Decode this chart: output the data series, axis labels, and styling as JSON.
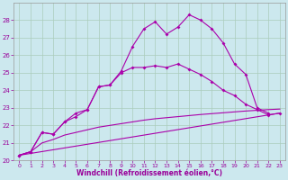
{
  "background_color": "#cce8ee",
  "grid_color": "#aaccbb",
  "line_color": "#aa00aa",
  "ylim": [
    20,
    29
  ],
  "yticks": [
    20,
    21,
    22,
    23,
    24,
    25,
    26,
    27,
    28
  ],
  "xticks": [
    0,
    1,
    2,
    3,
    4,
    5,
    6,
    7,
    8,
    9,
    10,
    11,
    12,
    13,
    14,
    15,
    16,
    17,
    18,
    19,
    20,
    21,
    22,
    23
  ],
  "xlabel": "Windchill (Refroidissement éolien,°C)",
  "line1_x": [
    0,
    1,
    2,
    3,
    4,
    5,
    6,
    7,
    8,
    9,
    10,
    11,
    12,
    13,
    14,
    15,
    16,
    17,
    18,
    19,
    20,
    21,
    22
  ],
  "line1_y": [
    20.3,
    20.5,
    21.6,
    21.5,
    22.2,
    22.7,
    22.9,
    24.2,
    24.3,
    25.1,
    26.5,
    27.5,
    27.9,
    27.2,
    27.6,
    28.3,
    28.0,
    27.5,
    26.7,
    25.5,
    24.9,
    23.0,
    22.7
  ],
  "line2_x": [
    0,
    1,
    2,
    3,
    4,
    5,
    6,
    7,
    8,
    9,
    10,
    11,
    12,
    13,
    14,
    15,
    16,
    17,
    18,
    19,
    20,
    21,
    22,
    23
  ],
  "line2_y": [
    20.3,
    20.5,
    21.6,
    21.5,
    22.2,
    22.5,
    22.9,
    24.2,
    24.3,
    25.0,
    25.3,
    25.3,
    25.4,
    25.3,
    25.5,
    25.2,
    24.9,
    24.5,
    24.0,
    23.7,
    23.2,
    22.9,
    22.6,
    22.7
  ],
  "line3_x": [
    0,
    1,
    2,
    3,
    4,
    5,
    6,
    7,
    8,
    9,
    10,
    11,
    12,
    13,
    14,
    15,
    16,
    17,
    18,
    19,
    20,
    21,
    22,
    23
  ],
  "line3_y": [
    20.3,
    20.5,
    21.0,
    21.2,
    21.45,
    21.6,
    21.75,
    21.9,
    22.0,
    22.1,
    22.2,
    22.3,
    22.38,
    22.44,
    22.5,
    22.56,
    22.62,
    22.67,
    22.72,
    22.77,
    22.82,
    22.86,
    22.9,
    22.93
  ],
  "line4_x": [
    0,
    23
  ],
  "line4_y": [
    20.3,
    22.7
  ]
}
